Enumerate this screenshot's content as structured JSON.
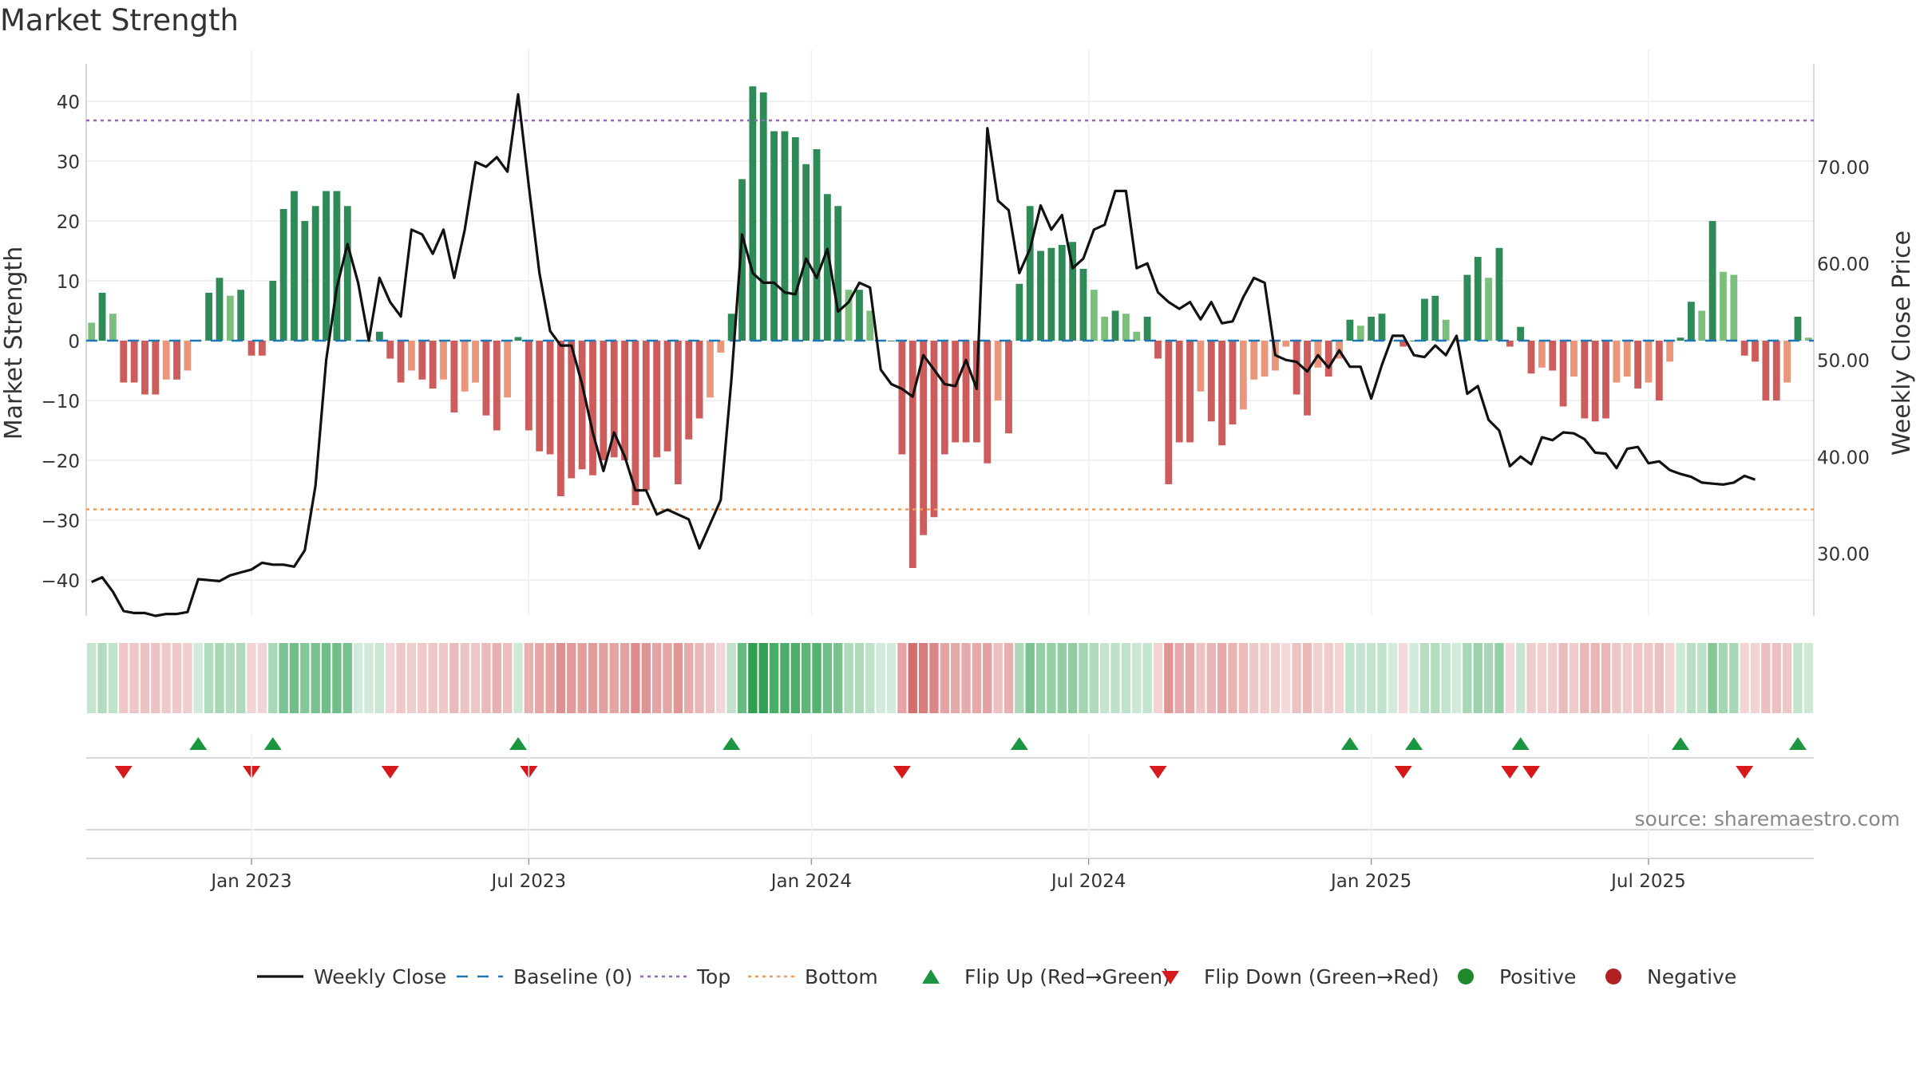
{
  "title": "Market Strength",
  "source": "source: sharemaestro.com",
  "colors": {
    "dark_green": "#2e8b57",
    "light_green": "#7cbf7c",
    "dark_red": "#cd5c5c",
    "light_red": "#e9967a",
    "close_line": "#111111",
    "baseline": "#1f77b4",
    "top_line": "#9467bd",
    "bottom_line": "#f39c5a",
    "flip_up": "#1a9641",
    "flip_down": "#d7191c",
    "positive": "#1e8a2e",
    "negative": "#b22222"
  },
  "legend": [
    {
      "label": "Weekly Close",
      "kind": "line-solid",
      "color": "#111111"
    },
    {
      "label": "Baseline (0)",
      "kind": "line-dash",
      "color": "#1f77b4"
    },
    {
      "label": "Top",
      "kind": "line-dot",
      "color": "#9467bd"
    },
    {
      "label": "Bottom",
      "kind": "line-dot",
      "color": "#f39c5a"
    },
    {
      "label": "Flip Up (Red→Green)",
      "kind": "tri-up",
      "color": "#1a9641"
    },
    {
      "label": "Flip Down (Green→Red)",
      "kind": "tri-down",
      "color": "#d7191c"
    },
    {
      "label": "Positive",
      "kind": "dot",
      "color": "#1e8a2e"
    },
    {
      "label": "Negative",
      "kind": "dot",
      "color": "#b22222"
    }
  ],
  "chart_data": {
    "type": "bar",
    "title": "Market Strength",
    "ylabel": "Market Strength",
    "y2label": "Weekly Close Price",
    "ylim": [
      -46,
      46
    ],
    "y2lim": [
      23.5,
      80.5
    ],
    "yticks": [
      40,
      30,
      20,
      10,
      0,
      -10,
      -20,
      -30,
      -40
    ],
    "ytick_labels": [
      "40",
      "30",
      "20",
      "10",
      "0",
      "−10",
      "−20",
      "−30",
      "−40"
    ],
    "y2ticks": [
      70,
      60,
      50,
      40,
      30
    ],
    "y2tick_labels": [
      "70.00",
      "60.00",
      "50.00",
      "40.00",
      "30.00"
    ],
    "xticks": [
      {
        "label": "Jan 2023",
        "week": 15
      },
      {
        "label": "Jul 2023",
        "week": 41
      },
      {
        "label": "Jan 2024",
        "week": 67.5
      },
      {
        "label": "Jul 2024",
        "week": 93.5
      },
      {
        "label": "Jan 2025",
        "week": 120
      },
      {
        "label": "Jul 2025",
        "week": 146
      }
    ],
    "grid": true,
    "top_level": 36.8,
    "bottom_level": -28.2,
    "strength": [
      3,
      8,
      4.5,
      -7,
      -7,
      -9,
      -9,
      -6.5,
      -6.5,
      -5,
      0,
      8,
      10.5,
      7.5,
      8.5,
      -2.5,
      -2.5,
      10,
      22,
      25,
      20,
      22.5,
      25,
      25,
      22.5,
      0,
      0,
      1.5,
      -3,
      -7,
      -5,
      -6.5,
      -8,
      -6.5,
      -12,
      -8.5,
      -7,
      -12.5,
      -15,
      -9.5,
      0.6,
      -15,
      -18.5,
      -19,
      -26,
      -23,
      -21.5,
      -22.5,
      -20,
      -19.5,
      -20,
      -27.5,
      -25,
      -19.5,
      -18.5,
      -24,
      -16.5,
      -13,
      -9.5,
      -2,
      4.5,
      27,
      42.5,
      41.5,
      35,
      35,
      34,
      29.5,
      32,
      24.5,
      22.5,
      8.5,
      8.5,
      5,
      0,
      0,
      -19,
      -38,
      -32.5,
      -29.5,
      -19,
      -17,
      -17,
      -17,
      -20.5,
      -10,
      -15.5,
      9.5,
      22.5,
      15,
      15.5,
      16,
      16.5,
      12,
      8.5,
      4,
      5,
      4.5,
      1.5,
      4,
      -3,
      -24,
      -17,
      -17,
      -8.5,
      -13.5,
      -17.5,
      -14,
      -11.5,
      -6.5,
      -6,
      -5,
      -1,
      -9,
      -12.5,
      -4.5,
      -6,
      -3,
      3.5,
      2.5,
      4,
      4.5,
      0,
      -1,
      0,
      7,
      7.5,
      3.5,
      0,
      11,
      14,
      10.5,
      15.5,
      -1,
      2.3,
      -5.5,
      -4.5,
      -5,
      -11,
      -6,
      -13,
      -13.5,
      -13,
      -7,
      -6,
      -8,
      -7,
      -10,
      -3.5,
      0.5,
      6.5,
      5,
      20,
      11.5,
      11,
      -2.5,
      -3.5,
      -10,
      -10,
      -7,
      4,
      0.5
    ],
    "weekly_close": [
      27,
      27.5,
      26,
      24,
      23.8,
      23.8,
      23.5,
      23.7,
      23.7,
      23.9,
      27.3,
      27.2,
      27.1,
      27.7,
      28,
      28.3,
      29,
      28.8,
      28.8,
      28.6,
      30.3,
      37,
      50,
      57.5,
      62,
      58,
      52,
      58.5,
      56,
      54.5,
      63.5,
      63,
      61,
      63.5,
      58.5,
      63.5,
      70.5,
      70,
      71,
      69.5,
      77.5,
      68,
      59,
      53,
      51.5,
      51.5,
      47.5,
      42.5,
      38.5,
      42.5,
      40,
      36.5,
      36.5,
      34,
      34.5,
      34,
      33.5,
      30.5,
      33,
      35.5,
      48,
      63,
      59,
      58,
      58,
      57,
      56.8,
      60.5,
      58.5,
      61.5,
      55,
      56,
      58,
      57.5,
      49,
      47.5,
      47,
      46.2,
      50.5,
      49,
      47.5,
      47.3,
      50,
      47,
      74,
      66.5,
      65.5,
      59,
      61.5,
      66,
      63.5,
      65,
      59.5,
      60.5,
      63.5,
      64,
      67.5,
      67.5,
      59.5,
      60,
      57,
      56,
      55.3,
      56,
      54.2,
      56,
      53.8,
      54,
      56.5,
      58.5,
      58,
      50.5,
      50,
      49.8,
      48.8,
      50.5,
      49.2,
      51,
      49.3,
      49.3,
      46,
      49.5,
      52.5,
      52.5,
      50.5,
      50.3,
      51.5,
      50.5,
      52.5,
      46.5,
      47.3,
      43.8,
      42.7,
      39,
      40,
      39.2,
      42,
      41.7,
      42.5,
      42.4,
      41.8,
      40.4,
      40.3,
      38.8,
      40.8,
      41,
      39.3,
      39.5,
      38.6,
      38.2,
      37.9,
      37.3,
      37.2,
      37.1,
      37.3,
      38,
      37.6
    ]
  }
}
